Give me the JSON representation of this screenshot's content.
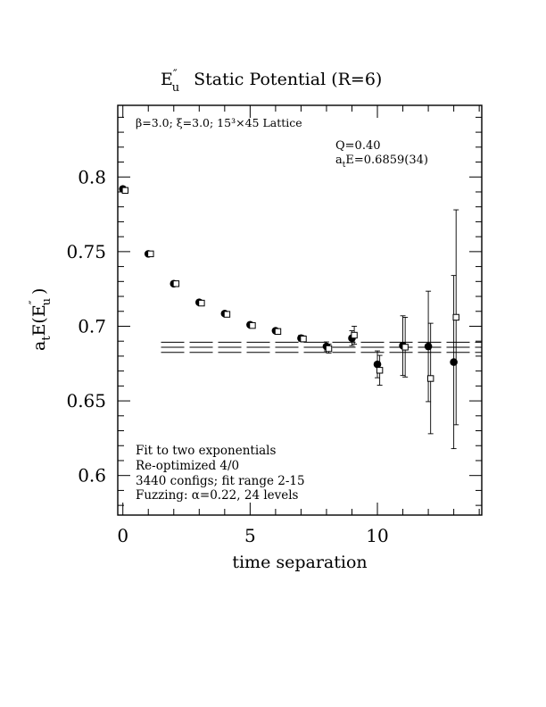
{
  "chart_data": {
    "type": "scatter",
    "title": "E″u  Static Potential (R=6)",
    "title_parts": {
      "main": "E",
      "sup": "″",
      "sub": "u",
      "rest": "Static Potential (R=6)"
    },
    "xlabel": "time separation",
    "ylabel_parts": {
      "a": "a",
      "a_sub": "t",
      "mid": "E(E",
      "sup": "″",
      "sub": "u",
      "end": ")"
    },
    "xlim": [
      -0.2,
      14.1
    ],
    "ylim": [
      0.5735,
      0.848
    ],
    "x_ticks": [
      0,
      5,
      10
    ],
    "y_ticks": [
      0.6,
      0.65,
      0.7,
      0.75,
      0.8
    ],
    "x_tick_labels": [
      "0",
      "5",
      "10"
    ],
    "y_tick_labels": [
      "0.6",
      "0.65",
      "0.7",
      "0.75",
      "0.8"
    ],
    "top_annotation": "β=3.0; ξ=3.0; 15³×45 Lattice",
    "fit_info": {
      "q_text": "Q=0.40",
      "e_prefix": "a",
      "e_sub": "t",
      "e_text": "E=0.6859(34)"
    },
    "bottom_annotations": [
      "Fit to two exponentials",
      "Re-optimized 4/0",
      "3440 configs; fit range 2-15",
      "Fuzzing: α=0.22, 24 levels"
    ],
    "fit": {
      "t_start": 1.5,
      "t_end": 14.1,
      "center": 0.6859,
      "error": 0.0034
    },
    "series": [
      {
        "marker": "filled-circle",
        "points": [
          {
            "x": 0,
            "y": 0.792,
            "err": 0.001
          },
          {
            "x": 1,
            "y": 0.7485,
            "err": 0.001
          },
          {
            "x": 2,
            "y": 0.7285,
            "err": 0.001
          },
          {
            "x": 3,
            "y": 0.716,
            "err": 0.001
          },
          {
            "x": 4,
            "y": 0.7085,
            "err": 0.0012
          },
          {
            "x": 5,
            "y": 0.701,
            "err": 0.0012
          },
          {
            "x": 6,
            "y": 0.697,
            "err": 0.0015
          },
          {
            "x": 7,
            "y": 0.692,
            "err": 0.002
          },
          {
            "x": 8,
            "y": 0.6865,
            "err": 0.003
          },
          {
            "x": 9,
            "y": 0.692,
            "err": 0.005
          },
          {
            "x": 10,
            "y": 0.6745,
            "err": 0.009
          },
          {
            "x": 11,
            "y": 0.687,
            "err": 0.02
          },
          {
            "x": 12,
            "y": 0.6865,
            "err": 0.037
          },
          {
            "x": 13,
            "y": 0.676,
            "err": 0.058
          }
        ]
      },
      {
        "marker": "open-square",
        "points": [
          {
            "x": 0,
            "y": 0.791,
            "err": 0.001
          },
          {
            "x": 1,
            "y": 0.7485,
            "err": 0.001
          },
          {
            "x": 2,
            "y": 0.7285,
            "err": 0.001
          },
          {
            "x": 3,
            "y": 0.7155,
            "err": 0.001
          },
          {
            "x": 4,
            "y": 0.708,
            "err": 0.0012
          },
          {
            "x": 5,
            "y": 0.7005,
            "err": 0.0012
          },
          {
            "x": 6,
            "y": 0.6965,
            "err": 0.0015
          },
          {
            "x": 7,
            "y": 0.6915,
            "err": 0.002
          },
          {
            "x": 8,
            "y": 0.685,
            "err": 0.003
          },
          {
            "x": 9,
            "y": 0.694,
            "err": 0.006
          },
          {
            "x": 10,
            "y": 0.6705,
            "err": 0.01
          },
          {
            "x": 11,
            "y": 0.686,
            "err": 0.02
          },
          {
            "x": 12,
            "y": 0.665,
            "err": 0.037
          },
          {
            "x": 13,
            "y": 0.706,
            "err": 0.072
          }
        ]
      }
    ]
  }
}
